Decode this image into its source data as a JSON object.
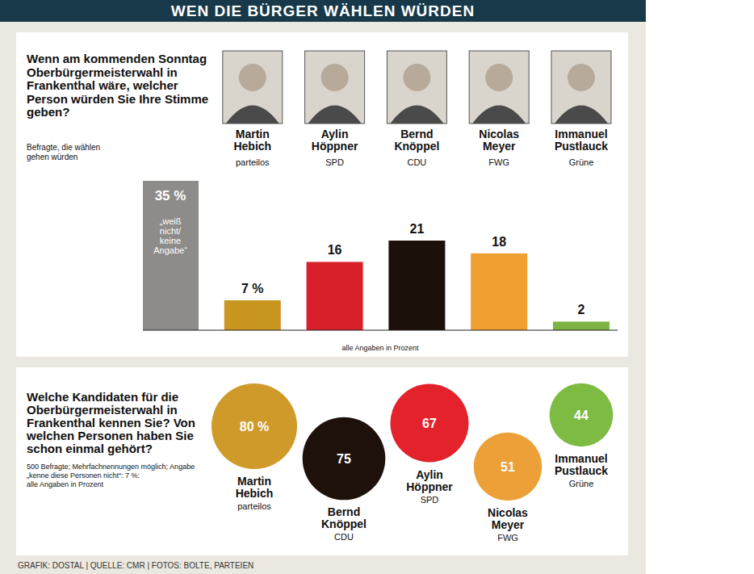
{
  "header": {
    "title": "WEN DIE BÜRGER WÄHLEN WÜRDEN"
  },
  "chart_data": [
    {
      "type": "bar",
      "title": "Wenn am kommenden Sonntag Oberbürgermeisterwahl in Frankenthal wäre, welcher Person würden Sie Ihre Stimme geben?",
      "subtitle": "Befragte, die wählen gehen würden",
      "note": "alle Angaben in Prozent",
      "categories": [
        "„weiß nicht/ keine Angabe“",
        "Martin Hebich",
        "Aylin Höppner",
        "Bernd Knöppel",
        "Nicolas Meyer",
        "Immanuel Pustlauck"
      ],
      "parties": [
        null,
        "parteilos",
        "SPD",
        "CDU",
        "FWG",
        "Grüne"
      ],
      "values": [
        35,
        7,
        16,
        21,
        18,
        2
      ],
      "value_labels": [
        "35 %",
        "7 %",
        "16",
        "21",
        "18",
        "2"
      ],
      "colors": [
        "#8e8c8a",
        "#c9961f",
        "#d8202a",
        "#1c100b",
        "#f0a030",
        "#7cb342"
      ],
      "ylim": [
        0,
        35
      ],
      "tick_labels": false,
      "data_labels": true
    },
    {
      "type": "bubble",
      "title": "Welche Kandidaten für die Oberbürgermeisterwahl in Frankenthal kennen Sie? Von welchen Personen haben Sie schon einmal gehört?",
      "subtitle": "500 Befragte; Mehrfachnennungen möglich; Angabe „kenne diese Personen nicht“: 7 %:",
      "note": "alle Angaben in Prozent",
      "categories": [
        "Martin Hebich",
        "Bernd Knöppel",
        "Aylin Höppner",
        "Nicolas Meyer",
        "Immanuel Pustlauck"
      ],
      "parties": [
        "parteilos",
        "CDU",
        "SPD",
        "FWG",
        "Grüne"
      ],
      "values": [
        80,
        75,
        67,
        51,
        44
      ],
      "value_labels": [
        "80 %",
        "75",
        "67",
        "51",
        "44"
      ],
      "colors": [
        "#d09a2a",
        "#1e110c",
        "#e3222c",
        "#eda038",
        "#7dbb42"
      ],
      "data_labels": true
    }
  ],
  "footer": {
    "source": "GRAFIK: DOSTAL | QUELLE: CMR | FOTOS: BOLTE, PARTEIEN"
  }
}
